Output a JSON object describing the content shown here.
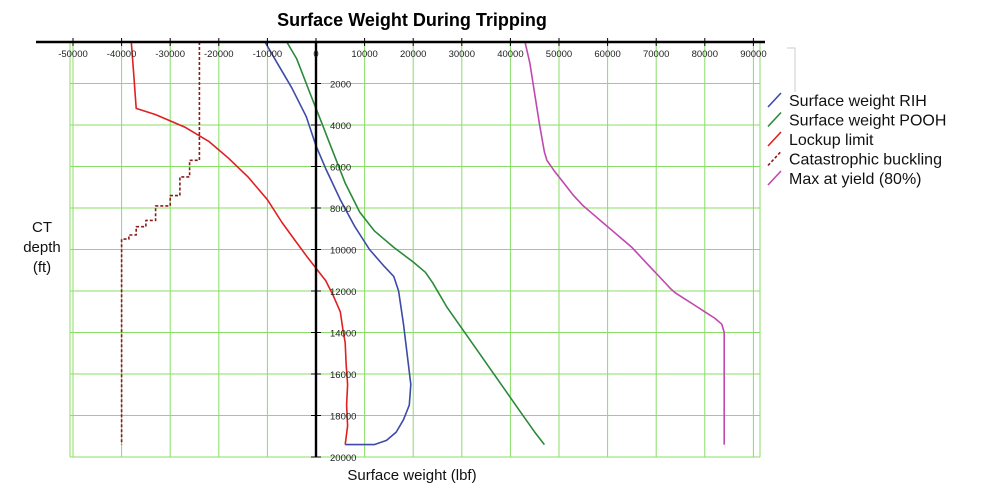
{
  "chart_data": {
    "type": "line",
    "title": "Surface Weight During Tripping",
    "xlabel": "Surface weight (lbf)",
    "ylabel": [
      "CT",
      "depth",
      "(ft)"
    ],
    "xlim": [
      -50000,
      90000
    ],
    "ylim": [
      0,
      20000
    ],
    "y_inverted": true,
    "x_axis_position": "top",
    "x_ticks": [
      -50000,
      -40000,
      -30000,
      -20000,
      -10000,
      0,
      10000,
      20000,
      30000,
      40000,
      50000,
      60000,
      70000,
      80000,
      90000
    ],
    "y_ticks": [
      2000,
      4000,
      6000,
      8000,
      10000,
      12000,
      14000,
      16000,
      18000,
      20000
    ],
    "grid": true,
    "legend_position": "right",
    "series": [
      {
        "name": "Surface weight RIH",
        "color": "#3c4aa8",
        "dash": "solid",
        "points": [
          [
            -10500,
            0
          ],
          [
            -8000,
            1000
          ],
          [
            -5000,
            2200
          ],
          [
            -2000,
            3600
          ],
          [
            0,
            5000
          ],
          [
            2000,
            6100
          ],
          [
            5000,
            7600
          ],
          [
            8000,
            8900
          ],
          [
            11000,
            10000
          ],
          [
            14000,
            10800
          ],
          [
            16000,
            11300
          ],
          [
            17000,
            12000
          ],
          [
            18000,
            13600
          ],
          [
            19000,
            15500
          ],
          [
            19500,
            16500
          ],
          [
            19200,
            17500
          ],
          [
            18000,
            18200
          ],
          [
            16500,
            18800
          ],
          [
            14500,
            19200
          ],
          [
            12000,
            19400
          ],
          [
            6000,
            19400
          ]
        ]
      },
      {
        "name": "Surface weight POOH",
        "color": "#2a8a3a",
        "dash": "solid",
        "points": [
          [
            -6000,
            0
          ],
          [
            -4000,
            800
          ],
          [
            -1000,
            2600
          ],
          [
            1000,
            3800
          ],
          [
            3000,
            5000
          ],
          [
            6000,
            6800
          ],
          [
            9000,
            8200
          ],
          [
            12000,
            9100
          ],
          [
            16000,
            9900
          ],
          [
            20000,
            10600
          ],
          [
            22500,
            11100
          ],
          [
            24000,
            11600
          ],
          [
            27000,
            12800
          ],
          [
            30000,
            13800
          ],
          [
            33000,
            14800
          ],
          [
            36000,
            15800
          ],
          [
            39000,
            16800
          ],
          [
            42000,
            17800
          ],
          [
            45000,
            18800
          ],
          [
            47000,
            19400
          ]
        ]
      },
      {
        "name": "Lockup limit",
        "color": "#e02020",
        "dash": "solid",
        "points": [
          [
            -38000,
            0
          ],
          [
            -37500,
            1600
          ],
          [
            -37000,
            3200
          ],
          [
            -33000,
            3500
          ],
          [
            -27000,
            4100
          ],
          [
            -22000,
            4800
          ],
          [
            -18000,
            5600
          ],
          [
            -14000,
            6500
          ],
          [
            -10000,
            7600
          ],
          [
            -7000,
            8700
          ],
          [
            -4500,
            9500
          ],
          [
            -2000,
            10300
          ],
          [
            0,
            10900
          ],
          [
            2000,
            11500
          ],
          [
            3500,
            12200
          ],
          [
            5000,
            13000
          ],
          [
            5500,
            13800
          ],
          [
            6000,
            14500
          ],
          [
            6200,
            15500
          ],
          [
            6500,
            16500
          ],
          [
            6300,
            17500
          ],
          [
            6500,
            18500
          ],
          [
            6000,
            19400
          ]
        ]
      },
      {
        "name": "Catastrophic buckling",
        "color": "#8b1a1a",
        "dash": "dashed",
        "points": [
          [
            -24000,
            0
          ],
          [
            -24000,
            5700
          ],
          [
            -26000,
            5700
          ],
          [
            -26000,
            6500
          ],
          [
            -28000,
            6500
          ],
          [
            -28000,
            7400
          ],
          [
            -30000,
            7400
          ],
          [
            -30000,
            7900
          ],
          [
            -33000,
            7900
          ],
          [
            -33000,
            8600
          ],
          [
            -35000,
            8600
          ],
          [
            -35000,
            8900
          ],
          [
            -37000,
            8900
          ],
          [
            -37000,
            9300
          ],
          [
            -38500,
            9300
          ],
          [
            -38500,
            9500
          ],
          [
            -40000,
            9500
          ],
          [
            -40000,
            19400
          ]
        ]
      },
      {
        "name": "Max at yield (80%)",
        "color": "#c048b0",
        "dash": "solid",
        "points": [
          [
            43000,
            0
          ],
          [
            44000,
            1000
          ],
          [
            45000,
            2500
          ],
          [
            46000,
            4000
          ],
          [
            47000,
            5300
          ],
          [
            47500,
            5700
          ],
          [
            49000,
            6200
          ],
          [
            51000,
            6800
          ],
          [
            53000,
            7400
          ],
          [
            55000,
            7900
          ],
          [
            57000,
            8300
          ],
          [
            59000,
            8700
          ],
          [
            61000,
            9100
          ],
          [
            63000,
            9500
          ],
          [
            65000,
            9900
          ],
          [
            67000,
            10400
          ],
          [
            69000,
            10900
          ],
          [
            71000,
            11400
          ],
          [
            73000,
            11900
          ],
          [
            74000,
            12100
          ],
          [
            76000,
            12400
          ],
          [
            78000,
            12700
          ],
          [
            80000,
            13000
          ],
          [
            82000,
            13300
          ],
          [
            83500,
            13600
          ],
          [
            84000,
            14000
          ],
          [
            84000,
            19400
          ]
        ]
      }
    ]
  }
}
